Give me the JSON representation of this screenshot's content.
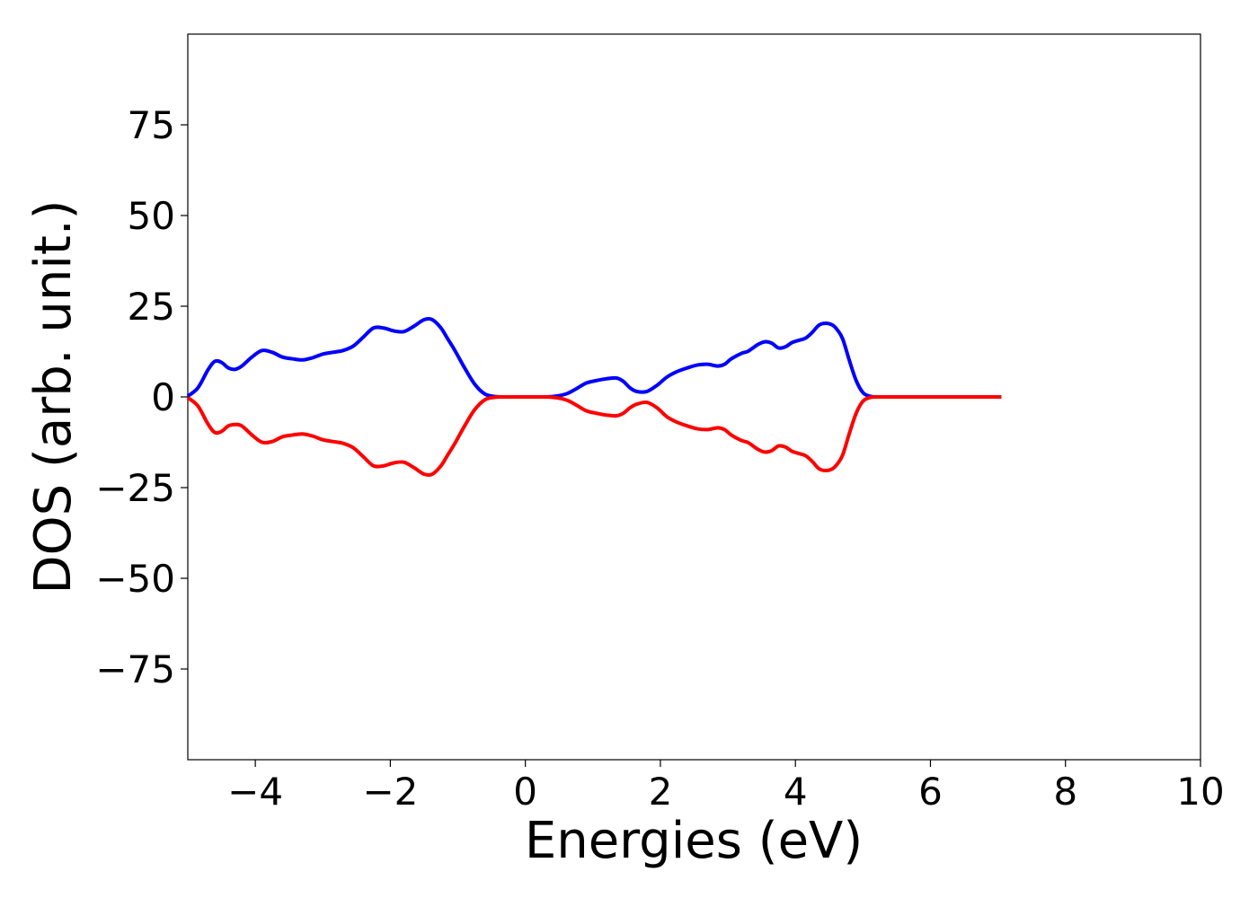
{
  "chart_data": {
    "type": "line",
    "title": "",
    "xlabel": "Energies (eV)",
    "ylabel": "DOS (arb. unit.)",
    "xlim": [
      -5,
      10
    ],
    "ylim": [
      -100,
      100
    ],
    "xticks": [
      {
        "value": -4,
        "label": "−4"
      },
      {
        "value": -2,
        "label": "−2"
      },
      {
        "value": 0,
        "label": "0"
      },
      {
        "value": 2,
        "label": "2"
      },
      {
        "value": 4,
        "label": "4"
      },
      {
        "value": 6,
        "label": "6"
      },
      {
        "value": 8,
        "label": "8"
      },
      {
        "value": 10,
        "label": "10"
      }
    ],
    "yticks": [
      {
        "value": 75,
        "label": "75"
      },
      {
        "value": 50,
        "label": "50"
      },
      {
        "value": 25,
        "label": "25"
      },
      {
        "value": 0,
        "label": "0"
      },
      {
        "value": -25,
        "label": "−25"
      },
      {
        "value": -50,
        "label": "−50"
      },
      {
        "value": -75,
        "label": "−75"
      }
    ],
    "grid": false,
    "legend": false,
    "series": [
      {
        "color": "#0000ff",
        "x": [
          -5.0,
          -4.85,
          -4.7,
          -4.6,
          -4.5,
          -4.4,
          -4.3,
          -4.2,
          -4.05,
          -3.9,
          -3.75,
          -3.6,
          -3.45,
          -3.3,
          -3.15,
          -3.0,
          -2.85,
          -2.7,
          -2.55,
          -2.4,
          -2.25,
          -2.1,
          -1.95,
          -1.8,
          -1.65,
          -1.5,
          -1.38,
          -1.25,
          -1.15,
          -1.05,
          -0.9,
          -0.75,
          -0.6,
          -0.45,
          -0.3,
          -0.15,
          0.0,
          0.2,
          0.4,
          0.6,
          0.75,
          0.9,
          1.05,
          1.2,
          1.35,
          1.45,
          1.55,
          1.65,
          1.8,
          1.95,
          2.1,
          2.25,
          2.4,
          2.55,
          2.7,
          2.85,
          2.95,
          3.05,
          3.2,
          3.3,
          3.45,
          3.55,
          3.65,
          3.75,
          3.85,
          3.95,
          4.05,
          4.15,
          4.25,
          4.35,
          4.45,
          4.55,
          4.62,
          4.7,
          4.8,
          4.9,
          5.0,
          5.1,
          5.2,
          5.35,
          5.5,
          6.0,
          6.5,
          7.05
        ],
        "y": [
          0.2,
          2.5,
          7.5,
          9.8,
          9.5,
          8.0,
          7.6,
          8.5,
          11.0,
          12.8,
          12.3,
          11.0,
          10.5,
          10.2,
          10.8,
          11.8,
          12.3,
          12.8,
          14.0,
          16.5,
          19.0,
          19.0,
          18.2,
          18.0,
          19.5,
          21.3,
          21.3,
          19.0,
          16.0,
          13.0,
          8.0,
          3.5,
          0.8,
          0.1,
          0.0,
          0.0,
          0.0,
          0.0,
          0.1,
          0.8,
          2.2,
          3.8,
          4.5,
          5.0,
          5.2,
          4.3,
          2.5,
          1.5,
          1.5,
          3.2,
          5.5,
          7.0,
          8.0,
          8.8,
          9.0,
          8.5,
          9.0,
          10.5,
          12.0,
          12.6,
          14.5,
          15.2,
          14.8,
          13.5,
          13.8,
          15.0,
          15.6,
          16.2,
          17.8,
          19.8,
          20.3,
          19.8,
          18.5,
          16.0,
          10.0,
          4.5,
          1.2,
          0.2,
          0.0,
          0.0,
          0.0,
          0.0,
          0.0,
          0.0
        ]
      },
      {
        "color": "#ff0000",
        "x": [
          -5.0,
          -4.85,
          -4.7,
          -4.6,
          -4.5,
          -4.4,
          -4.3,
          -4.2,
          -4.05,
          -3.9,
          -3.75,
          -3.6,
          -3.45,
          -3.3,
          -3.15,
          -3.0,
          -2.85,
          -2.7,
          -2.55,
          -2.4,
          -2.25,
          -2.1,
          -1.95,
          -1.8,
          -1.65,
          -1.5,
          -1.38,
          -1.25,
          -1.15,
          -1.05,
          -0.9,
          -0.75,
          -0.6,
          -0.45,
          -0.3,
          -0.15,
          0.0,
          0.2,
          0.4,
          0.6,
          0.75,
          0.9,
          1.05,
          1.2,
          1.35,
          1.45,
          1.55,
          1.65,
          1.8,
          1.95,
          2.1,
          2.25,
          2.4,
          2.55,
          2.7,
          2.85,
          2.95,
          3.05,
          3.2,
          3.3,
          3.45,
          3.55,
          3.65,
          3.75,
          3.85,
          3.95,
          4.05,
          4.15,
          4.25,
          4.35,
          4.45,
          4.55,
          4.62,
          4.7,
          4.8,
          4.9,
          5.0,
          5.1,
          5.2,
          5.35,
          5.5,
          6.0,
          6.5,
          7.05
        ],
        "y": [
          -0.2,
          -2.5,
          -7.5,
          -9.8,
          -9.5,
          -8.0,
          -7.6,
          -8.0,
          -10.5,
          -12.5,
          -12.3,
          -11.0,
          -10.5,
          -10.2,
          -10.8,
          -11.8,
          -12.3,
          -12.8,
          -14.0,
          -16.5,
          -19.0,
          -19.0,
          -18.2,
          -18.0,
          -19.5,
          -21.3,
          -21.3,
          -19.0,
          -16.0,
          -13.0,
          -8.0,
          -3.5,
          -0.8,
          -0.1,
          0.0,
          0.0,
          0.0,
          0.0,
          -0.1,
          -0.8,
          -2.2,
          -3.8,
          -4.5,
          -5.0,
          -5.2,
          -4.5,
          -3.0,
          -2.0,
          -1.5,
          -3.0,
          -5.5,
          -7.0,
          -8.0,
          -8.8,
          -9.0,
          -8.5,
          -9.0,
          -10.5,
          -12.0,
          -12.6,
          -14.5,
          -15.2,
          -14.8,
          -13.5,
          -13.8,
          -15.0,
          -15.6,
          -16.2,
          -17.8,
          -19.8,
          -20.3,
          -19.8,
          -18.5,
          -16.0,
          -10.0,
          -4.5,
          -1.2,
          -0.2,
          0.0,
          0.0,
          0.0,
          0.0,
          0.0,
          0.0
        ]
      }
    ]
  }
}
